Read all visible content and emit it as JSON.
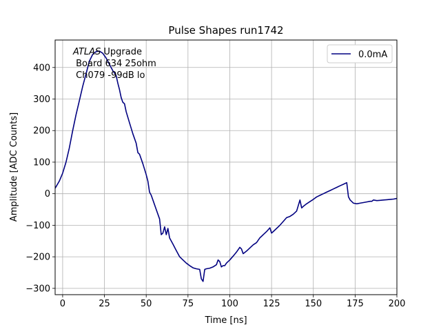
{
  "chart_data": {
    "type": "line",
    "title": "Pulse Shapes run1742",
    "xlabel": "Time [ns]",
    "ylabel": "Amplitude [ADC Counts]",
    "xlim": [
      -4.5,
      200
    ],
    "ylim": [
      -320,
      487
    ],
    "xticks": [
      0,
      25,
      50,
      75,
      100,
      125,
      150,
      175,
      200
    ],
    "yticks": [
      -300,
      -200,
      -100,
      0,
      100,
      200,
      300,
      400
    ],
    "grid": true,
    "legend_position": "top-right",
    "annotation": {
      "italic": "ATLAS",
      "line1_rest": " Upgrade",
      "line2": " Board 634 25ohm",
      "line3": " Ch079 -99dB lo"
    },
    "series": [
      {
        "name": "0.0mA",
        "color": "#000080",
        "x": [
          -4.5,
          -2,
          0,
          2,
          4,
          6,
          8,
          10,
          12,
          14,
          16,
          18,
          20,
          22,
          24,
          26,
          28,
          30,
          32,
          33,
          34,
          35,
          36,
          37,
          38,
          40,
          42,
          44,
          45,
          46,
          48,
          50,
          51,
          52,
          53,
          54,
          56,
          58,
          59,
          60,
          61,
          62,
          63,
          64,
          66,
          68,
          70,
          72,
          74,
          76,
          78,
          80,
          82,
          83,
          84,
          85,
          86,
          88,
          90,
          92,
          93,
          94,
          95,
          96,
          97,
          98,
          100,
          102,
          104,
          106,
          107,
          108,
          110,
          112,
          114,
          116,
          118,
          120,
          122,
          124,
          125,
          126,
          128,
          130,
          132,
          134,
          136,
          138,
          140,
          142,
          143,
          144,
          146,
          148,
          150,
          152,
          154,
          156,
          158,
          160,
          162,
          164,
          166,
          168,
          170,
          171,
          172,
          173,
          174,
          176,
          178,
          180,
          182,
          184,
          185,
          186,
          188,
          190,
          192,
          194,
          196,
          198,
          200
        ],
        "y": [
          17,
          40,
          65,
          100,
          145,
          200,
          250,
          295,
          340,
          380,
          420,
          442,
          450,
          452,
          445,
          430,
          410,
          390,
          375,
          350,
          330,
          305,
          290,
          285,
          260,
          225,
          190,
          160,
          130,
          125,
          95,
          60,
          40,
          5,
          -5,
          -20,
          -50,
          -80,
          -130,
          -125,
          -105,
          -130,
          -110,
          -140,
          -160,
          -180,
          -200,
          -210,
          -220,
          -228,
          -235,
          -238,
          -240,
          -270,
          -278,
          -240,
          -238,
          -236,
          -232,
          -225,
          -210,
          -215,
          -232,
          -228,
          -228,
          -220,
          -210,
          -198,
          -185,
          -170,
          -175,
          -190,
          -182,
          -172,
          -162,
          -155,
          -140,
          -130,
          -120,
          -108,
          -125,
          -120,
          -110,
          -100,
          -88,
          -76,
          -72,
          -65,
          -55,
          -20,
          -45,
          -40,
          -32,
          -25,
          -18,
          -10,
          -5,
          0,
          5,
          10,
          15,
          20,
          25,
          30,
          35,
          -10,
          -20,
          -25,
          -30,
          -32,
          -30,
          -28,
          -26,
          -24,
          -24,
          -20,
          -22,
          -21,
          -20,
          -19,
          -18,
          -17,
          -15
        ]
      }
    ]
  }
}
